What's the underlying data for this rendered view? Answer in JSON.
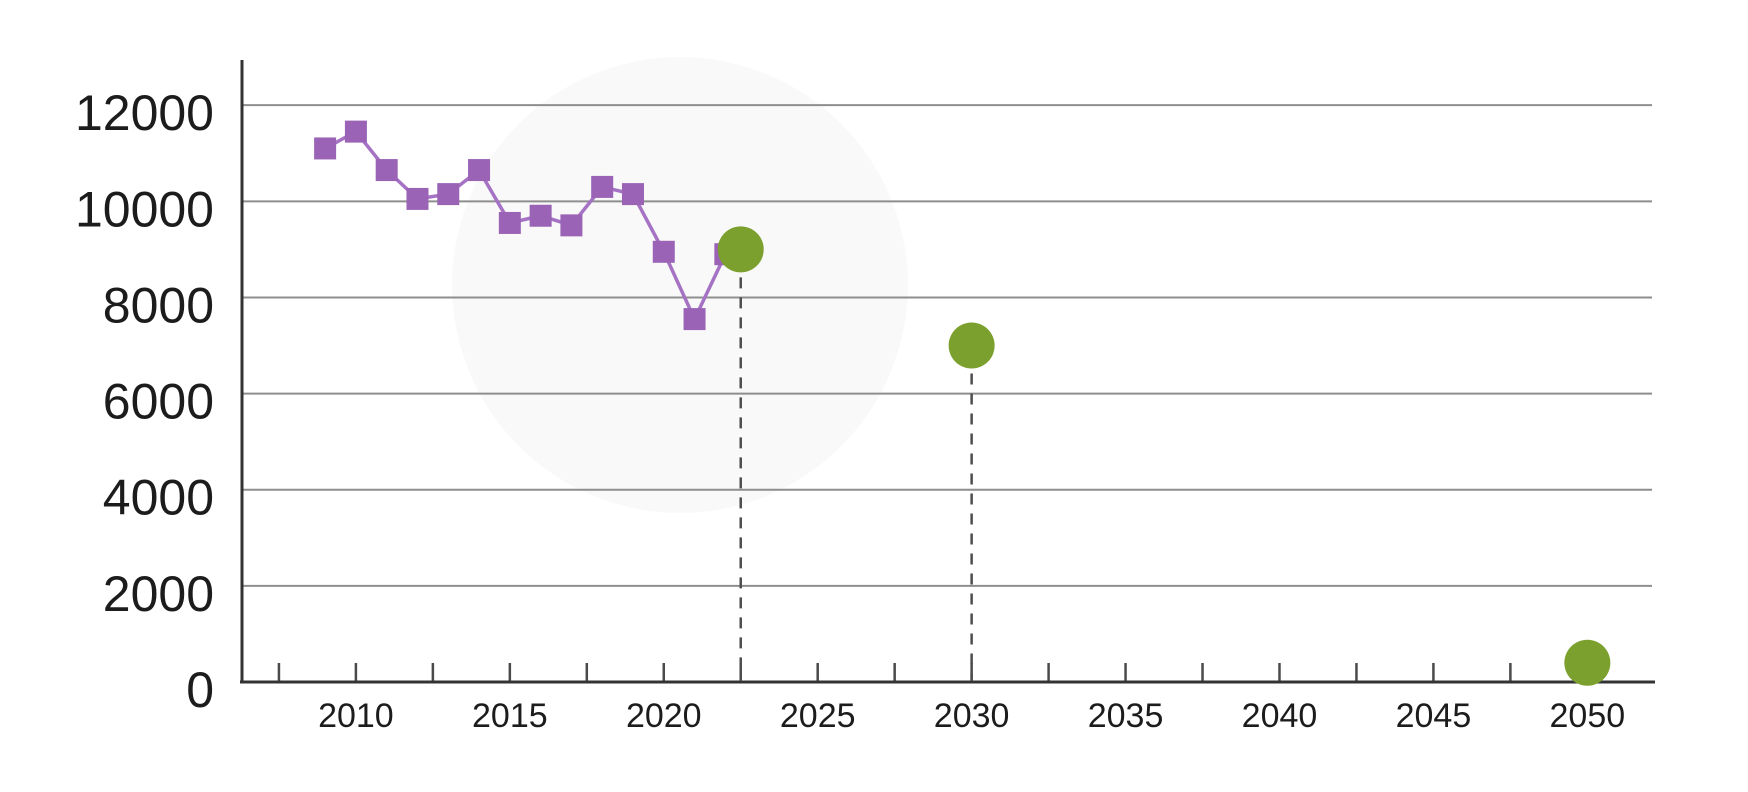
{
  "chart_data": {
    "type": "line",
    "title": "",
    "subtitle": "",
    "xlabel": "",
    "ylabel": "",
    "legend": "none",
    "grid": "horizontal-only",
    "xlim": [
      2006.3,
      2052.1
    ],
    "ylim": [
      0,
      12940
    ],
    "yticks": [
      0,
      2000,
      4000,
      6000,
      8000,
      10000,
      12000
    ],
    "xticks_labeled": [
      2010,
      2015,
      2020,
      2025,
      2030,
      2035,
      2040,
      2045,
      2050
    ],
    "x_minor_ticks": {
      "start": 2007.5,
      "end": 2050,
      "step": 2.5
    },
    "series": [
      {
        "name": "historical-line",
        "style": "line-with-square-markers",
        "marker": "square",
        "marker_color": "#9a63b5",
        "line_color": "#a572c4",
        "points": [
          [
            2009,
            11100
          ],
          [
            2010,
            11450
          ],
          [
            2011,
            10650
          ],
          [
            2012,
            10050
          ],
          [
            2013,
            10150
          ],
          [
            2014,
            10650
          ],
          [
            2015,
            9550
          ],
          [
            2016,
            9700
          ],
          [
            2017,
            9500
          ],
          [
            2018,
            10300
          ],
          [
            2019,
            10150
          ],
          [
            2020,
            8950
          ],
          [
            2021,
            7550
          ],
          [
            2022,
            8900
          ]
        ]
      },
      {
        "name": "projection-points",
        "style": "scatter-circles",
        "marker": "circle",
        "marker_color": "#7ba02e",
        "points": [
          [
            2022.5,
            9000
          ],
          [
            2030,
            7000
          ],
          [
            2050,
            400
          ]
        ],
        "dropline_years": [
          2022.5,
          2030
        ]
      }
    ],
    "colors": {
      "axis": "#333333",
      "gridline": "#8e8e8e",
      "tick": "#4a4a4a",
      "dropline": "#4d4d4d",
      "label_text": "#1c1c1c",
      "watermark": "#000000"
    },
    "watermark_circle": {
      "cx": 680,
      "cy": 285,
      "r": 228,
      "opacity": 0.025
    }
  }
}
